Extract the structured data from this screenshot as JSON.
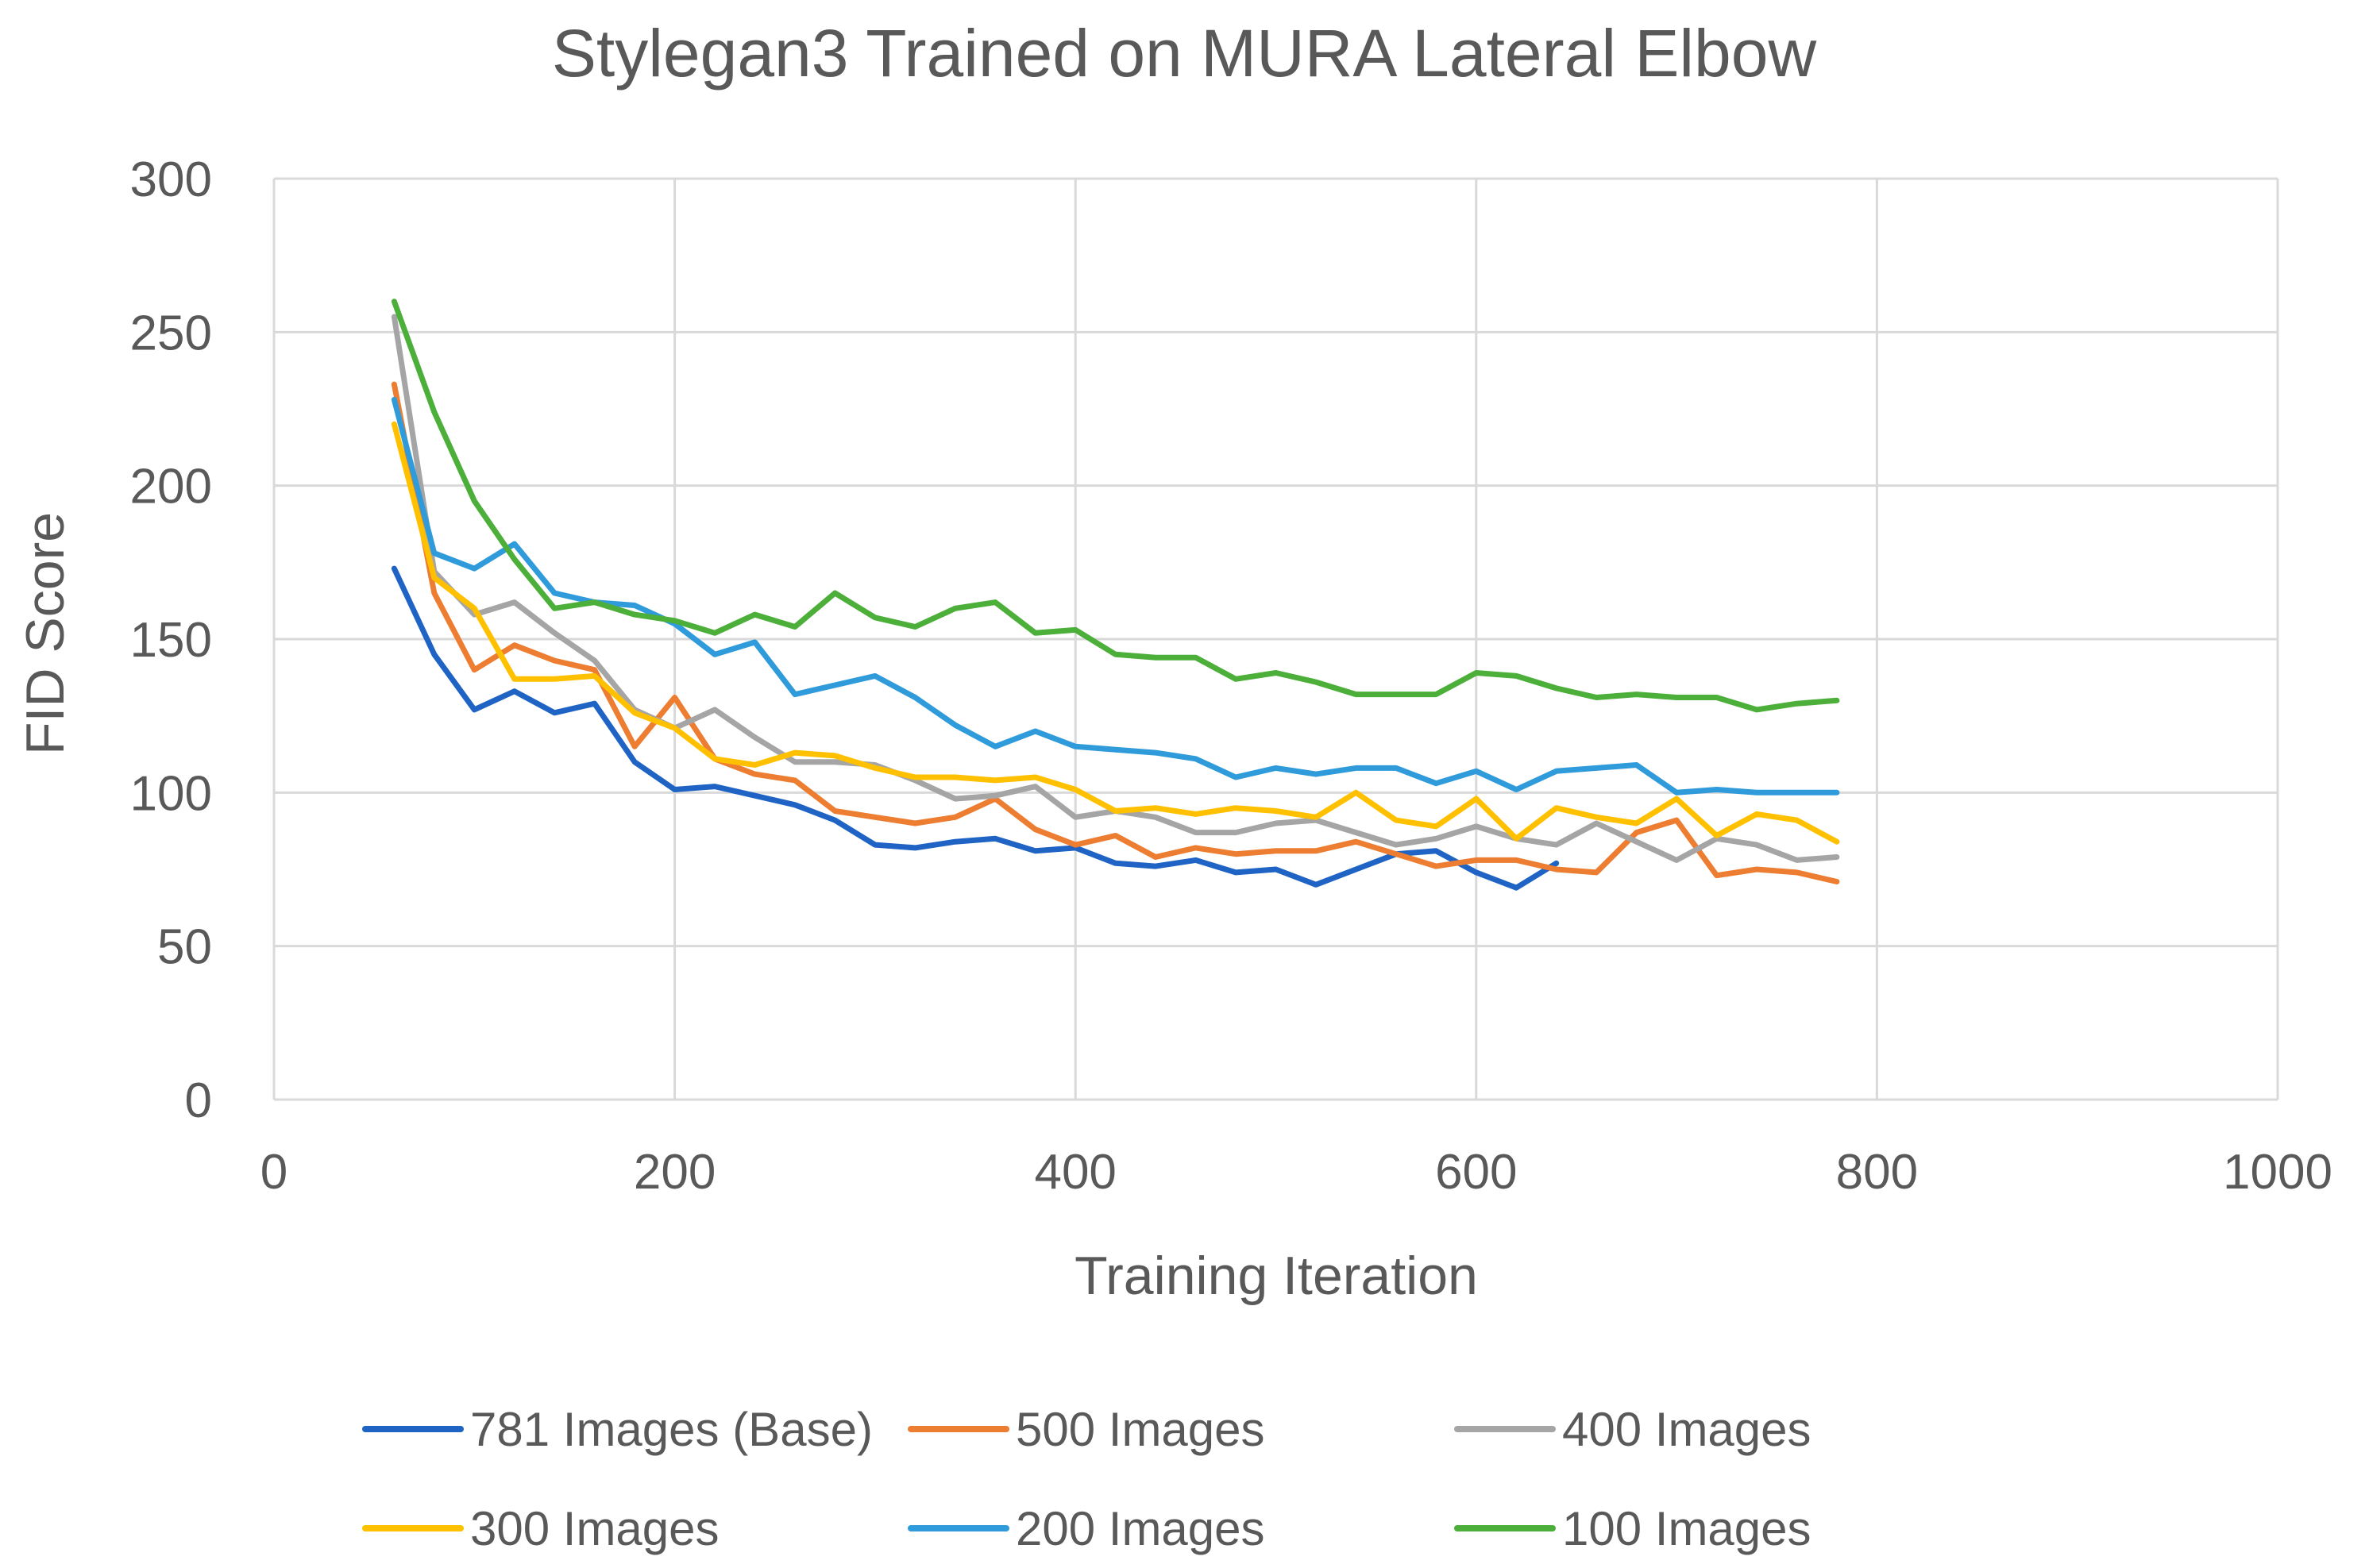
{
  "chart_data": {
    "type": "line",
    "title": "Stylegan3 Trained on MURA Lateral Elbow",
    "xlabel": "Training Iteration",
    "ylabel": "FID Score",
    "xlim": [
      0,
      1000
    ],
    "ylim": [
      0,
      300
    ],
    "xticks": [
      0,
      200,
      400,
      600,
      800,
      1000
    ],
    "yticks": [
      0,
      50,
      100,
      150,
      200,
      250,
      300
    ],
    "grid": true,
    "legend_position": "bottom",
    "series": [
      {
        "name": "781 Images (Base)",
        "color": "#1F64C4",
        "x": [
          60,
          80,
          100,
          120,
          140,
          160,
          180,
          200,
          220,
          240,
          260,
          280,
          300,
          320,
          340,
          360,
          380,
          400,
          420,
          440,
          460,
          480,
          500,
          520,
          540,
          560,
          580,
          600,
          620,
          640
        ],
        "y": [
          173,
          145,
          127,
          133,
          126,
          129,
          110,
          101,
          102,
          99,
          96,
          91,
          83,
          82,
          84,
          85,
          81,
          82,
          77,
          76,
          78,
          74,
          75,
          70,
          75,
          80,
          81,
          74,
          69,
          77
        ]
      },
      {
        "name": "500 Images",
        "color": "#ED7D31",
        "x": [
          60,
          80,
          100,
          120,
          140,
          160,
          180,
          200,
          220,
          240,
          260,
          280,
          300,
          320,
          340,
          360,
          380,
          400,
          420,
          440,
          460,
          480,
          500,
          520,
          540,
          560,
          580,
          600,
          620,
          640,
          660,
          680,
          700,
          720,
          740,
          760,
          780
        ],
        "y": [
          233,
          165,
          140,
          148,
          143,
          140,
          115,
          131,
          111,
          106,
          104,
          94,
          92,
          90,
          92,
          98,
          88,
          83,
          86,
          79,
          82,
          80,
          81,
          81,
          84,
          80,
          76,
          78,
          78,
          75,
          74,
          87,
          91,
          73,
          75,
          74,
          71
        ]
      },
      {
        "name": "400 Images",
        "color": "#A5A5A5",
        "x": [
          60,
          80,
          100,
          120,
          140,
          160,
          180,
          200,
          220,
          240,
          260,
          280,
          300,
          320,
          340,
          360,
          380,
          400,
          420,
          440,
          460,
          480,
          500,
          520,
          540,
          560,
          580,
          600,
          620,
          640,
          660,
          680,
          700,
          720,
          740,
          760,
          780
        ],
        "y": [
          255,
          172,
          158,
          162,
          152,
          143,
          127,
          121,
          127,
          118,
          110,
          110,
          109,
          104,
          98,
          99,
          102,
          92,
          94,
          92,
          87,
          87,
          90,
          91,
          87,
          83,
          85,
          89,
          85,
          83,
          90,
          84,
          78,
          85,
          83,
          78,
          79
        ]
      },
      {
        "name": "300 Images",
        "color": "#FFC000",
        "x": [
          60,
          80,
          100,
          120,
          140,
          160,
          180,
          200,
          220,
          240,
          260,
          280,
          300,
          320,
          340,
          360,
          380,
          400,
          420,
          440,
          460,
          480,
          500,
          520,
          540,
          560,
          580,
          600,
          620,
          640,
          660,
          680,
          700,
          720,
          740,
          760,
          780
        ],
        "y": [
          220,
          170,
          160,
          137,
          137,
          138,
          126,
          121,
          111,
          109,
          113,
          112,
          108,
          105,
          105,
          104,
          105,
          101,
          94,
          95,
          93,
          95,
          94,
          92,
          100,
          91,
          89,
          98,
          85,
          95,
          92,
          90,
          98,
          86,
          93,
          91,
          84
        ]
      },
      {
        "name": "200 Images",
        "color": "#2F9BDB",
        "x": [
          60,
          80,
          100,
          120,
          140,
          160,
          180,
          200,
          220,
          240,
          260,
          280,
          300,
          320,
          340,
          360,
          380,
          400,
          420,
          440,
          460,
          480,
          500,
          520,
          540,
          560,
          580,
          600,
          620,
          640,
          660,
          680,
          700,
          720,
          740,
          760,
          780
        ],
        "y": [
          228,
          178,
          173,
          181,
          165,
          162,
          161,
          155,
          145,
          149,
          132,
          135,
          138,
          131,
          122,
          115,
          120,
          115,
          114,
          113,
          111,
          105,
          108,
          106,
          108,
          108,
          103,
          107,
          101,
          107,
          108,
          109,
          100,
          101,
          100,
          100,
          100
        ]
      },
      {
        "name": "100 Images",
        "color": "#4CAF3A",
        "x": [
          60,
          80,
          100,
          120,
          140,
          160,
          180,
          200,
          220,
          240,
          260,
          280,
          300,
          320,
          340,
          360,
          380,
          400,
          420,
          440,
          460,
          480,
          500,
          520,
          540,
          560,
          580,
          600,
          620,
          640,
          660,
          680,
          700,
          720,
          740,
          760,
          780
        ],
        "y": [
          260,
          224,
          195,
          176,
          160,
          162,
          158,
          156,
          152,
          158,
          154,
          165,
          157,
          154,
          160,
          162,
          152,
          153,
          145,
          144,
          144,
          137,
          139,
          136,
          132,
          132,
          132,
          139,
          138,
          134,
          131,
          132,
          131,
          131,
          127,
          129,
          130
        ]
      }
    ]
  }
}
